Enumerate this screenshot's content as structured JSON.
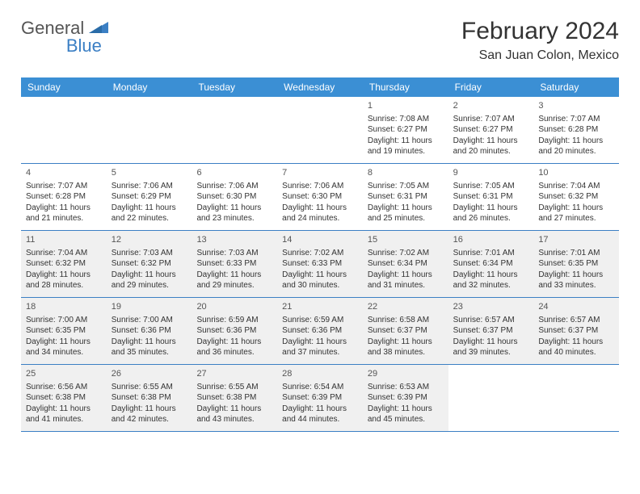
{
  "logo": {
    "general": "General",
    "blue": "Blue",
    "shape_color": "#3b7fc4"
  },
  "title": "February 2024",
  "location": "San Juan Colon, Mexico",
  "header_bg": "#3b8fd4",
  "border_color": "#3b7fc4",
  "shade_color": "#f0f0f0",
  "weekdays": [
    "Sunday",
    "Monday",
    "Tuesday",
    "Wednesday",
    "Thursday",
    "Friday",
    "Saturday"
  ],
  "weeks": [
    [
      {
        "num": "",
        "sunrise": "",
        "sunset": "",
        "daylight": "",
        "shaded": false
      },
      {
        "num": "",
        "sunrise": "",
        "sunset": "",
        "daylight": "",
        "shaded": false
      },
      {
        "num": "",
        "sunrise": "",
        "sunset": "",
        "daylight": "",
        "shaded": false
      },
      {
        "num": "",
        "sunrise": "",
        "sunset": "",
        "daylight": "",
        "shaded": false
      },
      {
        "num": "1",
        "sunrise": "Sunrise: 7:08 AM",
        "sunset": "Sunset: 6:27 PM",
        "daylight": "Daylight: 11 hours and 19 minutes.",
        "shaded": false
      },
      {
        "num": "2",
        "sunrise": "Sunrise: 7:07 AM",
        "sunset": "Sunset: 6:27 PM",
        "daylight": "Daylight: 11 hours and 20 minutes.",
        "shaded": false
      },
      {
        "num": "3",
        "sunrise": "Sunrise: 7:07 AM",
        "sunset": "Sunset: 6:28 PM",
        "daylight": "Daylight: 11 hours and 20 minutes.",
        "shaded": false
      }
    ],
    [
      {
        "num": "4",
        "sunrise": "Sunrise: 7:07 AM",
        "sunset": "Sunset: 6:28 PM",
        "daylight": "Daylight: 11 hours and 21 minutes.",
        "shaded": false
      },
      {
        "num": "5",
        "sunrise": "Sunrise: 7:06 AM",
        "sunset": "Sunset: 6:29 PM",
        "daylight": "Daylight: 11 hours and 22 minutes.",
        "shaded": false
      },
      {
        "num": "6",
        "sunrise": "Sunrise: 7:06 AM",
        "sunset": "Sunset: 6:30 PM",
        "daylight": "Daylight: 11 hours and 23 minutes.",
        "shaded": false
      },
      {
        "num": "7",
        "sunrise": "Sunrise: 7:06 AM",
        "sunset": "Sunset: 6:30 PM",
        "daylight": "Daylight: 11 hours and 24 minutes.",
        "shaded": false
      },
      {
        "num": "8",
        "sunrise": "Sunrise: 7:05 AM",
        "sunset": "Sunset: 6:31 PM",
        "daylight": "Daylight: 11 hours and 25 minutes.",
        "shaded": false
      },
      {
        "num": "9",
        "sunrise": "Sunrise: 7:05 AM",
        "sunset": "Sunset: 6:31 PM",
        "daylight": "Daylight: 11 hours and 26 minutes.",
        "shaded": false
      },
      {
        "num": "10",
        "sunrise": "Sunrise: 7:04 AM",
        "sunset": "Sunset: 6:32 PM",
        "daylight": "Daylight: 11 hours and 27 minutes.",
        "shaded": false
      }
    ],
    [
      {
        "num": "11",
        "sunrise": "Sunrise: 7:04 AM",
        "sunset": "Sunset: 6:32 PM",
        "daylight": "Daylight: 11 hours and 28 minutes.",
        "shaded": true
      },
      {
        "num": "12",
        "sunrise": "Sunrise: 7:03 AM",
        "sunset": "Sunset: 6:32 PM",
        "daylight": "Daylight: 11 hours and 29 minutes.",
        "shaded": true
      },
      {
        "num": "13",
        "sunrise": "Sunrise: 7:03 AM",
        "sunset": "Sunset: 6:33 PM",
        "daylight": "Daylight: 11 hours and 29 minutes.",
        "shaded": true
      },
      {
        "num": "14",
        "sunrise": "Sunrise: 7:02 AM",
        "sunset": "Sunset: 6:33 PM",
        "daylight": "Daylight: 11 hours and 30 minutes.",
        "shaded": true
      },
      {
        "num": "15",
        "sunrise": "Sunrise: 7:02 AM",
        "sunset": "Sunset: 6:34 PM",
        "daylight": "Daylight: 11 hours and 31 minutes.",
        "shaded": true
      },
      {
        "num": "16",
        "sunrise": "Sunrise: 7:01 AM",
        "sunset": "Sunset: 6:34 PM",
        "daylight": "Daylight: 11 hours and 32 minutes.",
        "shaded": true
      },
      {
        "num": "17",
        "sunrise": "Sunrise: 7:01 AM",
        "sunset": "Sunset: 6:35 PM",
        "daylight": "Daylight: 11 hours and 33 minutes.",
        "shaded": true
      }
    ],
    [
      {
        "num": "18",
        "sunrise": "Sunrise: 7:00 AM",
        "sunset": "Sunset: 6:35 PM",
        "daylight": "Daylight: 11 hours and 34 minutes.",
        "shaded": true
      },
      {
        "num": "19",
        "sunrise": "Sunrise: 7:00 AM",
        "sunset": "Sunset: 6:36 PM",
        "daylight": "Daylight: 11 hours and 35 minutes.",
        "shaded": true
      },
      {
        "num": "20",
        "sunrise": "Sunrise: 6:59 AM",
        "sunset": "Sunset: 6:36 PM",
        "daylight": "Daylight: 11 hours and 36 minutes.",
        "shaded": true
      },
      {
        "num": "21",
        "sunrise": "Sunrise: 6:59 AM",
        "sunset": "Sunset: 6:36 PM",
        "daylight": "Daylight: 11 hours and 37 minutes.",
        "shaded": true
      },
      {
        "num": "22",
        "sunrise": "Sunrise: 6:58 AM",
        "sunset": "Sunset: 6:37 PM",
        "daylight": "Daylight: 11 hours and 38 minutes.",
        "shaded": true
      },
      {
        "num": "23",
        "sunrise": "Sunrise: 6:57 AM",
        "sunset": "Sunset: 6:37 PM",
        "daylight": "Daylight: 11 hours and 39 minutes.",
        "shaded": true
      },
      {
        "num": "24",
        "sunrise": "Sunrise: 6:57 AM",
        "sunset": "Sunset: 6:37 PM",
        "daylight": "Daylight: 11 hours and 40 minutes.",
        "shaded": true
      }
    ],
    [
      {
        "num": "25",
        "sunrise": "Sunrise: 6:56 AM",
        "sunset": "Sunset: 6:38 PM",
        "daylight": "Daylight: 11 hours and 41 minutes.",
        "shaded": true
      },
      {
        "num": "26",
        "sunrise": "Sunrise: 6:55 AM",
        "sunset": "Sunset: 6:38 PM",
        "daylight": "Daylight: 11 hours and 42 minutes.",
        "shaded": true
      },
      {
        "num": "27",
        "sunrise": "Sunrise: 6:55 AM",
        "sunset": "Sunset: 6:38 PM",
        "daylight": "Daylight: 11 hours and 43 minutes.",
        "shaded": true
      },
      {
        "num": "28",
        "sunrise": "Sunrise: 6:54 AM",
        "sunset": "Sunset: 6:39 PM",
        "daylight": "Daylight: 11 hours and 44 minutes.",
        "shaded": true
      },
      {
        "num": "29",
        "sunrise": "Sunrise: 6:53 AM",
        "sunset": "Sunset: 6:39 PM",
        "daylight": "Daylight: 11 hours and 45 minutes.",
        "shaded": true
      },
      {
        "num": "",
        "sunrise": "",
        "sunset": "",
        "daylight": "",
        "shaded": false
      },
      {
        "num": "",
        "sunrise": "",
        "sunset": "",
        "daylight": "",
        "shaded": false
      }
    ]
  ]
}
